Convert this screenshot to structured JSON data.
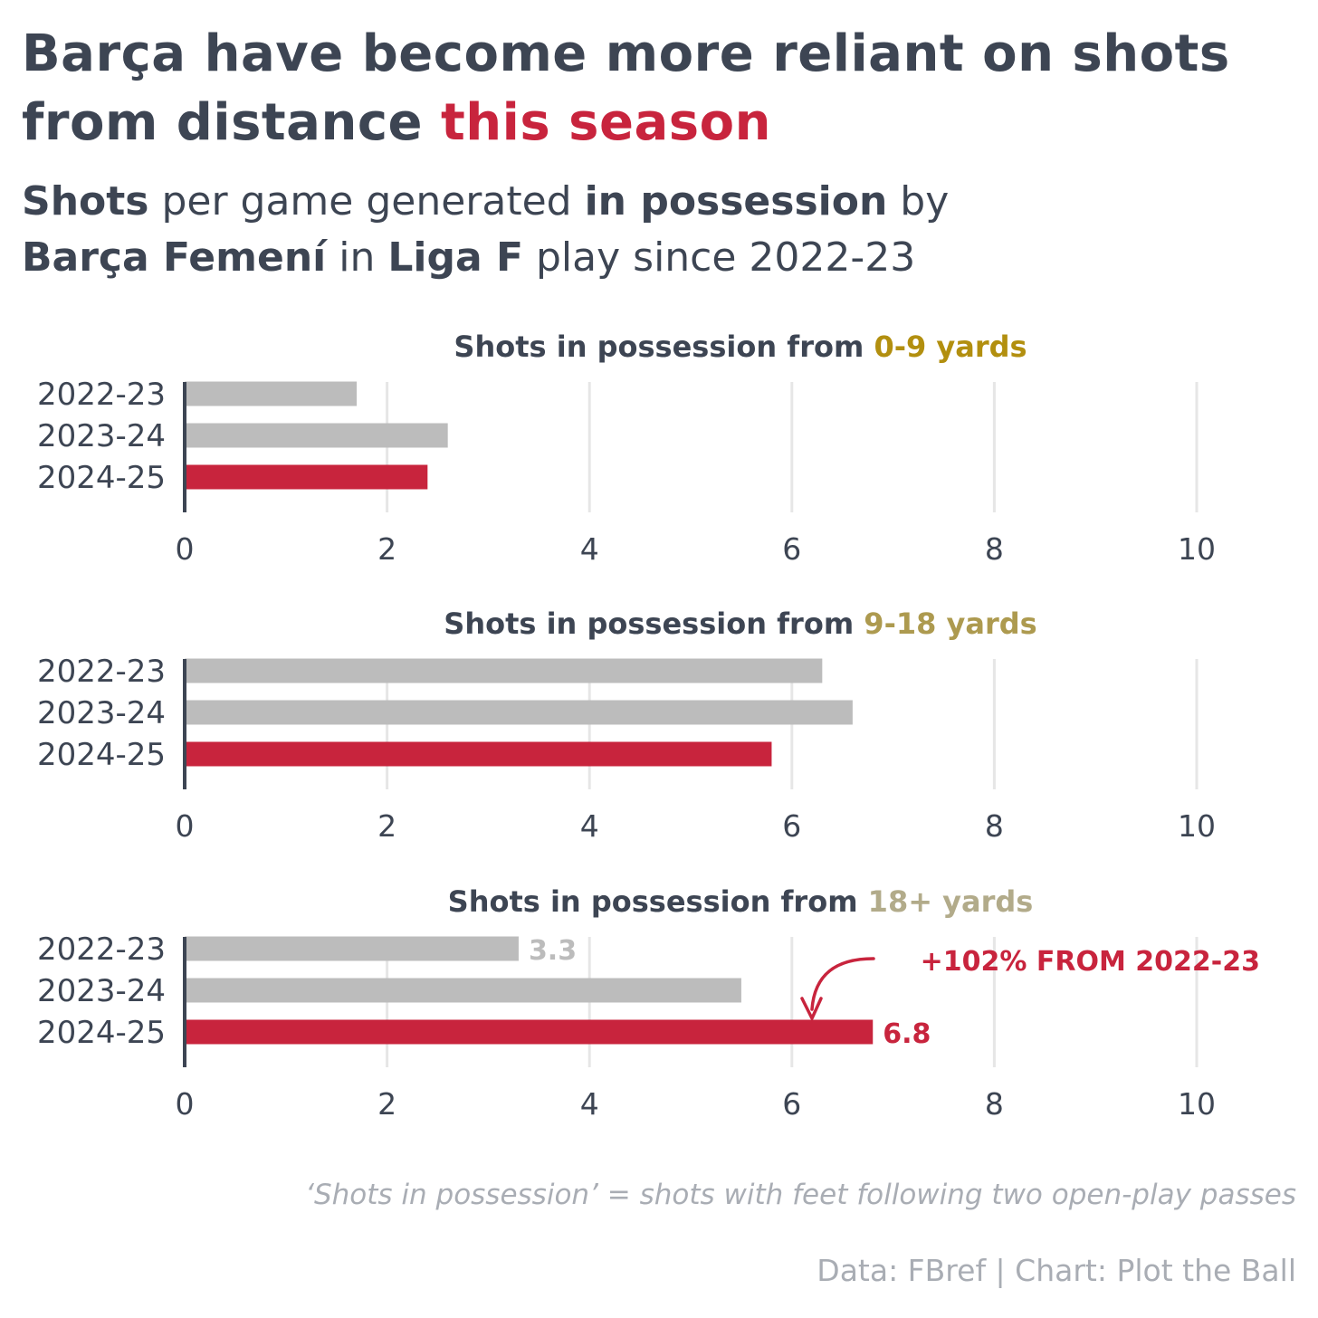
{
  "title": {
    "part1": "Barça have become more reliant on shots from distance ",
    "highlight": "this season",
    "highlight_color": "#c8243d"
  },
  "subtitle": {
    "s1": "Shots",
    "s2": " per game generated ",
    "s3": "in possession",
    "s4": " by ",
    "s5": "Barça Femení",
    "s6": " in ",
    "s7": "Liga F",
    "s8": " play since 2022-23"
  },
  "colors": {
    "text": "#3d4553",
    "bar_default": "#bcbcbc",
    "bar_highlight": "#c8243d",
    "grid": "#e6e6e6",
    "label_0_9": "#b28f0f",
    "label_9_18": "#ad9a4f",
    "label_18_plus": "#b2ab8a"
  },
  "chart_data": [
    {
      "type": "bar",
      "orientation": "horizontal",
      "title_prefix": "Shots in possession from ",
      "title_highlight": "0-9 yards",
      "categories": [
        "2022-23",
        "2023-24",
        "2024-25"
      ],
      "values": [
        1.7,
        2.6,
        2.4
      ],
      "highlight_index": 2,
      "xlim": [
        0,
        10
      ],
      "xticks": [
        0,
        2,
        4,
        6,
        8,
        10
      ],
      "grid": true,
      "data_labels": []
    },
    {
      "type": "bar",
      "orientation": "horizontal",
      "title_prefix": "Shots in possession from ",
      "title_highlight": "9-18 yards",
      "categories": [
        "2022-23",
        "2023-24",
        "2024-25"
      ],
      "values": [
        6.3,
        6.6,
        5.8
      ],
      "highlight_index": 2,
      "xlim": [
        0,
        10
      ],
      "xticks": [
        0,
        2,
        4,
        6,
        8,
        10
      ],
      "grid": true,
      "data_labels": []
    },
    {
      "type": "bar",
      "orientation": "horizontal",
      "title_prefix": "Shots in possession from ",
      "title_highlight": "18+ yards",
      "categories": [
        "2022-23",
        "2023-24",
        "2024-25"
      ],
      "values": [
        3.3,
        5.5,
        6.8
      ],
      "highlight_index": 2,
      "xlim": [
        0,
        10
      ],
      "xticks": [
        0,
        2,
        4,
        6,
        8,
        10
      ],
      "grid": true,
      "data_labels": [
        "3.3",
        "",
        "6.8"
      ],
      "annotation": "+102% FROM 2022-23"
    }
  ],
  "footnote": "‘Shots in possession’ = shots with feet following two open-play passes",
  "credit": "Data: FBref | Chart: Plot the Ball"
}
